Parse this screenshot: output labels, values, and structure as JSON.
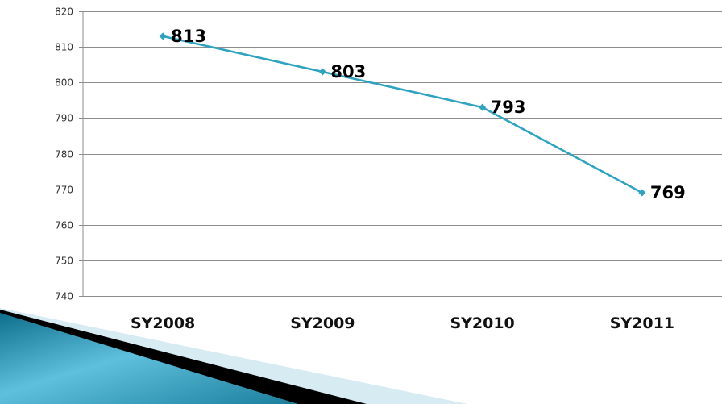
{
  "chart_data": {
    "type": "line",
    "title": "",
    "xlabel": "",
    "ylabel": "",
    "categories": [
      "SY2008",
      "SY2009",
      "SY2010",
      "SY2011"
    ],
    "series": [
      {
        "values": [
          813,
          803,
          793,
          769
        ],
        "color": "#2ea3bf"
      }
    ],
    "ylim": [
      740,
      820
    ],
    "yticks": [
      "740",
      "750",
      "760",
      "770",
      "780",
      "790",
      "800",
      "810",
      "820"
    ],
    "data_labels": [
      "813",
      "803",
      "793",
      "769"
    ],
    "grid": true,
    "legend": "none",
    "gridline_color": "#8c8c8c",
    "decor_colors": {
      "dark": "#0d6f8c",
      "light": "#5ec0dc",
      "black": "#000000",
      "pale": "#d7ebf3"
    }
  }
}
